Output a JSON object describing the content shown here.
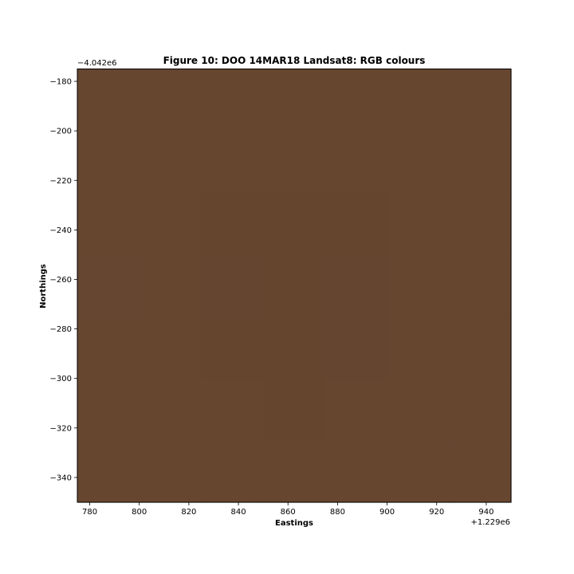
{
  "chart_data": {
    "type": "heatmap",
    "title": "Figure 10: DOO 14MAR18  Landsat8: RGB colours",
    "xlabel": "Eastings",
    "ylabel": "Northings",
    "x_offset_label": "+1.229e6",
    "y_offset_label": "−4.042e6",
    "xlim": [
      775,
      950
    ],
    "ylim": [
      -350,
      -175
    ],
    "x_ticks": [
      780,
      800,
      820,
      840,
      860,
      880,
      900,
      920,
      940
    ],
    "y_ticks": [
      -180,
      -200,
      -220,
      -240,
      -260,
      -280,
      -300,
      -320,
      -340
    ],
    "grid": false,
    "pixel_size": 25,
    "grid_x_edges": [
      775,
      800,
      825,
      850,
      875,
      900,
      925,
      950
    ],
    "grid_y_edges": [
      -175,
      -200,
      -225,
      -250,
      -275,
      -300,
      -325,
      -350
    ],
    "cells": [
      [
        "#674630",
        "#674630",
        "#66462f",
        "#66462f",
        "#67462f",
        "#66462f",
        "#674630"
      ],
      [
        "#674630",
        "#67462f",
        "#66462f",
        "#66462f",
        "#66462f",
        "#66462f",
        "#674630"
      ],
      [
        "#674630",
        "#66462f",
        "#66452f",
        "#66452f",
        "#66452f",
        "#66462f",
        "#674630"
      ],
      [
        "#674631",
        "#66462f",
        "#65452f",
        "#65452e",
        "#65452f",
        "#66462f",
        "#674630"
      ],
      [
        "#674630",
        "#66462f",
        "#65452e",
        "#65452e",
        "#65452f",
        "#66462f",
        "#674630"
      ],
      [
        "#674630",
        "#67462f",
        "#66462f",
        "#66452f",
        "#66462f",
        "#66462f",
        "#674630"
      ],
      [
        "#674630",
        "#674630",
        "#67462f",
        "#66462f",
        "#67462f",
        "#674630",
        "#674630"
      ]
    ]
  }
}
